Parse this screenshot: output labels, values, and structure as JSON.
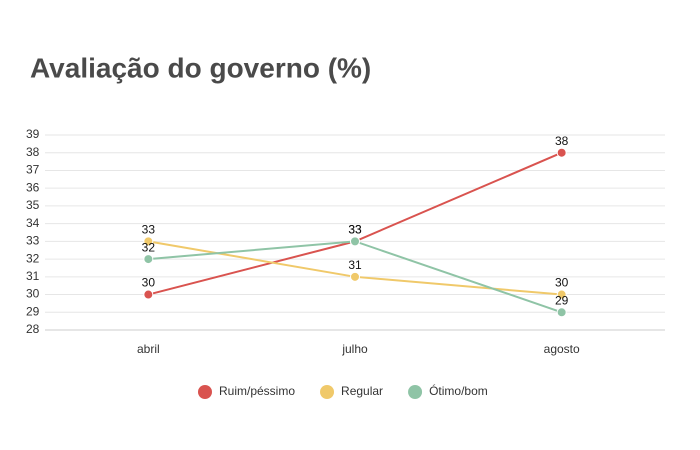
{
  "chart_data": {
    "type": "line",
    "title": "Avaliação do governo (%)",
    "categories": [
      "abril",
      "julho",
      "agosto"
    ],
    "series": [
      {
        "name": "Ruim/péssimo",
        "color": "#d9534f",
        "values": [
          30,
          33,
          38
        ]
      },
      {
        "name": "Regular",
        "color": "#f0c96a",
        "values": [
          33,
          31,
          30
        ]
      },
      {
        "name": "Ótimo/bom",
        "color": "#8fc4a6",
        "values": [
          32,
          33,
          29
        ]
      }
    ],
    "ylim": [
      28,
      39
    ],
    "yticks": [
      28,
      29,
      30,
      31,
      32,
      33,
      34,
      35,
      36,
      37,
      38,
      39
    ],
    "grid": true,
    "legend": "bottom"
  }
}
